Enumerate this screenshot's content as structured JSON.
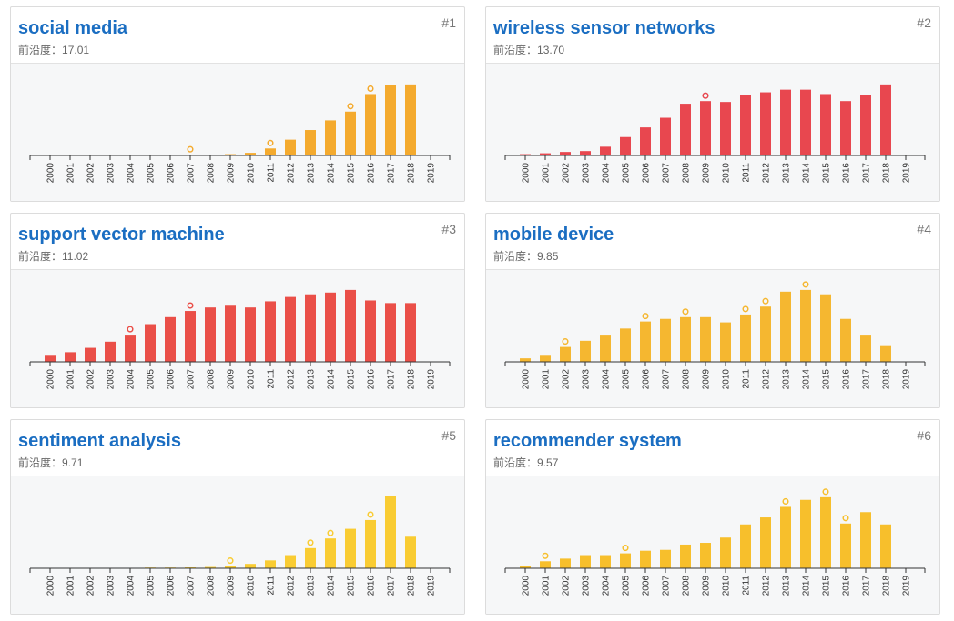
{
  "cards": [
    {
      "rank": "#1",
      "title": "social media",
      "meta_label": "前沿度：",
      "meta_value": "17.01"
    },
    {
      "rank": "#2",
      "title": "wireless sensor networks",
      "meta_label": "前沿度：",
      "meta_value": "13.70"
    },
    {
      "rank": "#3",
      "title": "support vector machine",
      "meta_label": "前沿度：",
      "meta_value": "11.02"
    },
    {
      "rank": "#4",
      "title": "mobile device",
      "meta_label": "前沿度：",
      "meta_value": "9.85"
    },
    {
      "rank": "#5",
      "title": "sentiment analysis",
      "meta_label": "前沿度：",
      "meta_value": "9.71"
    },
    {
      "rank": "#6",
      "title": "recommender system",
      "meta_label": "前沿度：",
      "meta_value": "9.57"
    }
  ],
  "chart_data": [
    {
      "type": "bar",
      "categories": [
        "2000",
        "2001",
        "2002",
        "2003",
        "2004",
        "2005",
        "2006",
        "2007",
        "2008",
        "2009",
        "2010",
        "2011",
        "2012",
        "2013",
        "2014",
        "2015",
        "2016",
        "2017",
        "2018",
        "2019"
      ],
      "values": [
        0,
        0,
        0,
        0,
        0,
        0,
        0.5,
        0.5,
        1,
        1.5,
        3,
        8,
        18,
        29,
        40,
        50,
        70,
        80,
        81,
        null
      ],
      "markers": [
        "2007",
        "2011",
        "2015",
        "2016"
      ],
      "color": "#f4aa2e",
      "ylim": [
        0,
        85
      ],
      "grid": false
    },
    {
      "type": "bar",
      "categories": [
        "2000",
        "2001",
        "2002",
        "2003",
        "2004",
        "2005",
        "2006",
        "2007",
        "2008",
        "2009",
        "2010",
        "2011",
        "2012",
        "2013",
        "2014",
        "2015",
        "2016",
        "2017",
        "2018",
        "2019"
      ],
      "values": [
        1.5,
        2.5,
        4,
        5,
        10,
        21,
        32,
        43,
        59,
        62,
        61,
        69,
        72,
        75,
        75,
        70,
        62,
        69,
        81,
        null
      ],
      "markers": [
        "2009"
      ],
      "color": "#e8474f",
      "ylim": [
        0,
        85
      ],
      "grid": false
    },
    {
      "type": "bar",
      "categories": [
        "2000",
        "2001",
        "2002",
        "2003",
        "2004",
        "2005",
        "2006",
        "2007",
        "2008",
        "2009",
        "2010",
        "2011",
        "2012",
        "2013",
        "2014",
        "2015",
        "2016",
        "2017",
        "2018",
        "2019"
      ],
      "values": [
        8,
        11,
        16,
        23,
        31,
        43,
        51,
        58,
        62,
        64,
        62,
        69,
        74,
        77,
        79,
        82,
        70,
        67,
        67,
        null
      ],
      "markers": [
        "2004",
        "2007"
      ],
      "color": "#ea4f48",
      "ylim": [
        0,
        85
      ],
      "grid": false
    },
    {
      "type": "bar",
      "categories": [
        "2000",
        "2001",
        "2002",
        "2003",
        "2004",
        "2005",
        "2006",
        "2007",
        "2008",
        "2009",
        "2010",
        "2011",
        "2012",
        "2013",
        "2014",
        "2015",
        "2016",
        "2017",
        "2018",
        "2019"
      ],
      "values": [
        4,
        8,
        17,
        24,
        31,
        38,
        46,
        49,
        51,
        51,
        45,
        54,
        63,
        80,
        82,
        77,
        49,
        31,
        19,
        null
      ],
      "markers": [
        "2002",
        "2006",
        "2008",
        "2011",
        "2012",
        "2014"
      ],
      "color": "#f5b730",
      "ylim": [
        0,
        85
      ],
      "grid": false
    },
    {
      "type": "bar",
      "categories": [
        "2000",
        "2001",
        "2002",
        "2003",
        "2004",
        "2005",
        "2006",
        "2007",
        "2008",
        "2009",
        "2010",
        "2011",
        "2012",
        "2013",
        "2014",
        "2015",
        "2016",
        "2017",
        "2018",
        "2019"
      ],
      "values": [
        0,
        0,
        0,
        0,
        0,
        0.5,
        0.8,
        1,
        1.5,
        2.5,
        5,
        9,
        15,
        23,
        34,
        45,
        55,
        82,
        36,
        null
      ],
      "markers": [
        "2009",
        "2013",
        "2014",
        "2016"
      ],
      "color": "#f9cc33",
      "ylim": [
        0,
        85
      ],
      "grid": false
    },
    {
      "type": "bar",
      "categories": [
        "2000",
        "2001",
        "2002",
        "2003",
        "2004",
        "2005",
        "2006",
        "2007",
        "2008",
        "2009",
        "2010",
        "2011",
        "2012",
        "2013",
        "2014",
        "2015",
        "2016",
        "2017",
        "2018",
        "2019"
      ],
      "values": [
        3,
        8,
        11,
        15,
        15,
        17,
        20,
        21,
        27,
        29,
        35,
        50,
        58,
        70,
        78,
        81,
        51,
        64,
        50,
        null
      ],
      "markers": [
        "2001",
        "2005",
        "2013",
        "2015",
        "2016"
      ],
      "color": "#f7bf2c",
      "ylim": [
        0,
        85
      ],
      "grid": false
    }
  ]
}
